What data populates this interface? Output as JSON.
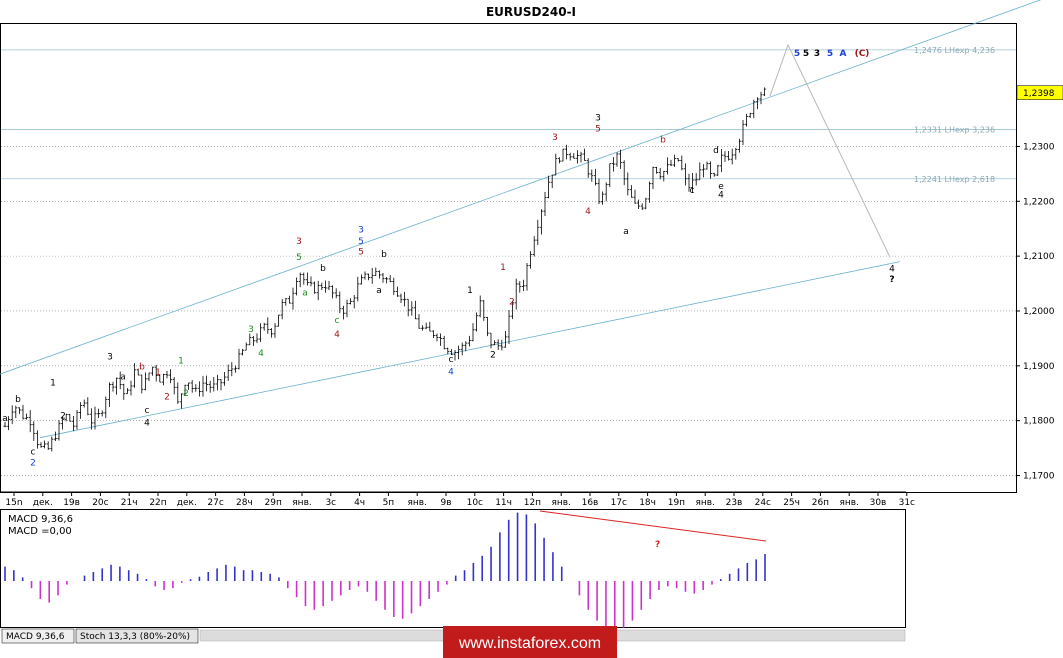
{
  "window": {
    "title": "EURUSD240-I",
    "indicator_tabs": [
      "MACD 9,36,6",
      "Stoch 13,3,3 (80%-20%)"
    ],
    "watermark": "www.instaforex.com"
  },
  "colors": {
    "candle": "#000000",
    "channel": "#6ab0cc",
    "level_line": "#9cc3d5",
    "grid": "#888888",
    "forecast": "#b8b8b8",
    "macd_pos": "#3333cc",
    "macd_neg": "#cc33cc",
    "macd_divergence": "#dd2222",
    "price_box": "#ffff00",
    "watermark_bg": "#c11b1b",
    "label_black": "#000000",
    "label_red": "#a01818",
    "label_green": "#1a8a1a",
    "label_blue": "#1a3fd0"
  },
  "chart_data": {
    "type": "candlestick",
    "symbol": "EURUSD240-I",
    "ylim": [
      1.167,
      1.2525
    ],
    "y_ticks": [
      1.17,
      1.18,
      1.19,
      1.2,
      1.21,
      1.22,
      1.23
    ],
    "y_tick_labels": [
      "1,1700",
      "1,1800",
      "1,1900",
      "1,2000",
      "1,2100",
      "1,2200",
      "1,2300"
    ],
    "current_price": {
      "value": 1.2398,
      "label": "1,2398"
    },
    "x_tick_labels": [
      "15n",
      "дек.",
      "19в",
      "20c",
      "21ч",
      "22п",
      "дек.",
      "27c",
      "28ч",
      "29п",
      "янв.",
      "3c",
      "4ч",
      "5п",
      "янв.",
      "9в",
      "10c",
      "11ч",
      "12п",
      "янв.",
      "16в",
      "17c",
      "18ч",
      "19п",
      "янв.",
      "23в",
      "24c",
      "25ч",
      "26п",
      "янв.",
      "30в",
      "31c"
    ],
    "levels": [
      {
        "value": 1.2476,
        "label": "1,2476 LHexp 4,236"
      },
      {
        "value": 1.2331,
        "label": "1,2331 LHexp 3,236"
      },
      {
        "value": 1.2241,
        "label": "1,2241 LHexp 2,618"
      }
    ],
    "path": [
      1.179,
      1.183,
      1.181,
      1.18,
      1.175,
      1.1748,
      1.178,
      1.181,
      1.179,
      1.184,
      1.18,
      1.181,
      1.186,
      1.188,
      1.184,
      1.189,
      1.186,
      1.19,
      1.1875,
      1.1895,
      1.183,
      1.188,
      1.185,
      1.187,
      1.186,
      1.187,
      1.189,
      1.191,
      1.194,
      1.195,
      1.197,
      1.1965,
      1.201,
      1.202,
      1.2075,
      1.2045,
      1.204,
      1.205,
      1.203,
      1.2,
      1.2015,
      1.205,
      1.2065,
      1.207,
      1.206,
      1.2045,
      1.2025,
      1.2,
      1.197,
      1.196,
      1.196,
      1.1935,
      1.1925,
      1.1935,
      1.1955,
      1.2015,
      1.1945,
      1.1935,
      1.195,
      1.204,
      1.205,
      1.212,
      1.218,
      1.224,
      1.228,
      1.229,
      1.2285,
      1.2275,
      1.224,
      1.2195,
      1.226,
      1.2285,
      1.222,
      1.219,
      1.2195,
      1.2265,
      1.225,
      1.2265,
      1.2275,
      1.2225,
      1.224,
      1.227,
      1.2235,
      1.228,
      1.2285,
      1.2315,
      1.2355,
      1.2395,
      1.2398
    ],
    "channel_upper": [
      [
        0,
        1.1885
      ],
      [
        1063,
        1.2582
      ]
    ],
    "channel_lower": [
      [
        40,
        1.1769
      ],
      [
        900,
        1.209
      ]
    ],
    "forecast": [
      [
        770,
        1.2392
      ],
      [
        788,
        1.2485
      ],
      [
        890,
        1.2098
      ]
    ],
    "wave_labels": [
      {
        "t": "a",
        "x": 5,
        "y": 1.1799,
        "c": "label_black"
      },
      {
        "t": "b",
        "x": 18,
        "y": 1.1834,
        "c": "label_black"
      },
      {
        "t": "c",
        "x": 33,
        "y": 1.1738,
        "c": "label_black"
      },
      {
        "t": "2",
        "x": 33,
        "y": 1.1718,
        "c": "label_blue"
      },
      {
        "t": "1",
        "x": 53,
        "y": 1.1864,
        "c": "label_black"
      },
      {
        "t": "2",
        "x": 63,
        "y": 1.1804,
        "c": "label_black"
      },
      {
        "t": "3",
        "x": 110,
        "y": 1.1912,
        "c": "label_black"
      },
      {
        "t": "a",
        "x": 123,
        "y": 1.1875,
        "c": "label_black"
      },
      {
        "t": "b",
        "x": 142,
        "y": 1.1893,
        "c": "label_red"
      },
      {
        "t": "1",
        "x": 158,
        "y": 1.1883,
        "c": "label_red"
      },
      {
        "t": "c",
        "x": 147,
        "y": 1.1814,
        "c": "label_black"
      },
      {
        "t": "4",
        "x": 147,
        "y": 1.1791,
        "c": "label_black"
      },
      {
        "t": "2",
        "x": 167,
        "y": 1.1839,
        "c": "label_red"
      },
      {
        "t": "1",
        "x": 181,
        "y": 1.1904,
        "c": "label_green"
      },
      {
        "t": "2",
        "x": 186,
        "y": 1.1845,
        "c": "label_green"
      },
      {
        "t": "3",
        "x": 251,
        "y": 1.1962,
        "c": "label_green"
      },
      {
        "t": "4",
        "x": 261,
        "y": 1.1918,
        "c": "label_green"
      },
      {
        "t": "3",
        "x": 299,
        "y": 1.2122,
        "c": "label_red"
      },
      {
        "t": "5",
        "x": 299,
        "y": 1.2093,
        "c": "label_green"
      },
      {
        "t": "a",
        "x": 305,
        "y": 1.2028,
        "c": "label_green"
      },
      {
        "t": "b",
        "x": 323,
        "y": 1.2073,
        "c": "label_black"
      },
      {
        "t": "c",
        "x": 337,
        "y": 1.1978,
        "c": "label_green"
      },
      {
        "t": "4",
        "x": 337,
        "y": 1.1953,
        "c": "label_red"
      },
      {
        "t": "3",
        "x": 361,
        "y": 1.2143,
        "c": "label_blue"
      },
      {
        "t": "5",
        "x": 361,
        "y": 1.2122,
        "c": "label_blue"
      },
      {
        "t": "5",
        "x": 361,
        "y": 1.2103,
        "c": "label_red"
      },
      {
        "t": "b",
        "x": 384,
        "y": 1.2098,
        "c": "label_black"
      },
      {
        "t": "a",
        "x": 379,
        "y": 1.2033,
        "c": "label_black"
      },
      {
        "t": "c",
        "x": 451,
        "y": 1.1907,
        "c": "label_black"
      },
      {
        "t": "4",
        "x": 451,
        "y": 1.1884,
        "c": "label_blue"
      },
      {
        "t": "1",
        "x": 470,
        "y": 1.2033,
        "c": "label_black"
      },
      {
        "t": "2",
        "x": 493,
        "y": 1.1915,
        "c": "label_black"
      },
      {
        "t": "1",
        "x": 503,
        "y": 1.2075,
        "c": "label_red"
      },
      {
        "t": "2",
        "x": 512,
        "y": 1.2012,
        "c": "label_red"
      },
      {
        "t": "3",
        "x": 555,
        "y": 1.2312,
        "c": "label_red"
      },
      {
        "t": "3",
        "x": 598,
        "y": 1.2347,
        "c": "label_black"
      },
      {
        "t": "5",
        "x": 598,
        "y": 1.2327,
        "c": "label_red"
      },
      {
        "t": "4",
        "x": 588,
        "y": 1.2177,
        "c": "label_red"
      },
      {
        "t": "a",
        "x": 626,
        "y": 1.214,
        "c": "label_black"
      },
      {
        "t": "b",
        "x": 663,
        "y": 1.2307,
        "c": "label_red"
      },
      {
        "t": "c",
        "x": 692,
        "y": 1.2215,
        "c": "label_black"
      },
      {
        "t": "d",
        "x": 716,
        "y": 1.2288,
        "c": "label_black"
      },
      {
        "t": "e",
        "x": 721,
        "y": 1.2222,
        "c": "label_black"
      },
      {
        "t": "4",
        "x": 721,
        "y": 1.2207,
        "c": "label_black"
      },
      {
        "t": "5",
        "x": 797,
        "y": 1.2465,
        "c": "label_blue"
      },
      {
        "t": "5",
        "x": 806,
        "y": 1.2465,
        "c": "label_black"
      },
      {
        "t": "3",
        "x": 817,
        "y": 1.2465,
        "c": "label_black"
      },
      {
        "t": "5",
        "x": 830,
        "y": 1.2465,
        "c": "label_blue"
      },
      {
        "t": "A",
        "x": 843,
        "y": 1.2465,
        "c": "label_blue"
      },
      {
        "t": "(C)",
        "x": 862,
        "y": 1.2465,
        "c": "label_red"
      },
      {
        "t": "4",
        "x": 892,
        "y": 1.2072,
        "c": "label_black"
      },
      {
        "t": "?",
        "x": 892,
        "y": 1.2053,
        "c": "label_black"
      }
    ],
    "macd": {
      "label_main": "MACD 9,36,6",
      "label_value": "MACD =0,00",
      "divergence_mark": "?",
      "values": [
        0.4,
        0.3,
        0.1,
        -0.2,
        -0.5,
        -0.6,
        -0.4,
        -0.1,
        0.0,
        0.15,
        0.25,
        0.35,
        0.45,
        0.4,
        0.3,
        0.2,
        0.05,
        -0.15,
        -0.25,
        -0.2,
        -0.05,
        0.05,
        0.12,
        0.25,
        0.35,
        0.45,
        0.4,
        0.3,
        0.3,
        0.25,
        0.2,
        0.1,
        -0.2,
        -0.45,
        -0.7,
        -0.8,
        -0.7,
        -0.55,
        -0.4,
        -0.25,
        -0.15,
        -0.3,
        -0.55,
        -0.8,
        -1.0,
        -1.05,
        -0.9,
        -0.7,
        -0.5,
        -0.3,
        -0.1,
        0.15,
        0.3,
        0.5,
        0.7,
        0.95,
        1.35,
        1.7,
        1.9,
        1.85,
        1.6,
        1.2,
        0.8,
        0.4,
        0.0,
        -0.4,
        -0.8,
        -1.1,
        -1.3,
        -1.4,
        -1.3,
        -1.1,
        -0.8,
        -0.5,
        -0.25,
        -0.15,
        -0.2,
        -0.3,
        -0.35,
        -0.25,
        -0.1,
        0.05,
        0.2,
        0.35,
        0.5,
        0.6,
        0.75
      ]
    }
  }
}
